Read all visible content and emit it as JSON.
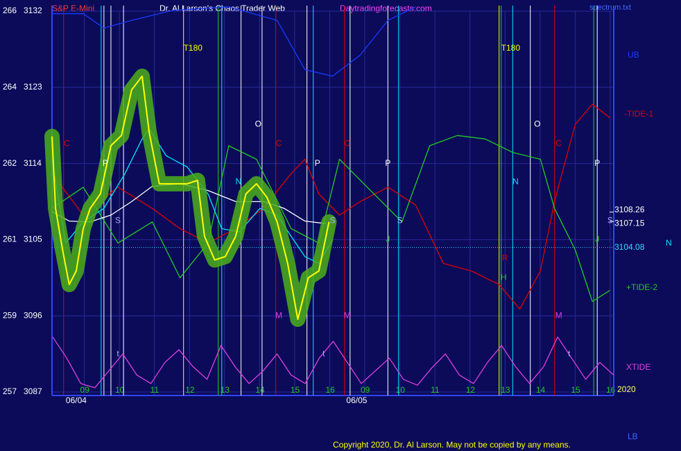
{
  "chart_data": {
    "type": "line",
    "title": "Dr. Al Larson's Chaos Trader Web",
    "symbol": "S&P E-Mini",
    "site": "Daytradingforecasts.com",
    "file": "spectrum.txt",
    "copyright": "Copyright 2020, Dr. Al Larson. May not be copied by any means.",
    "year_label": "2020",
    "lb_label": "LB",
    "n_label": "N",
    "background": "#0b0b5a",
    "grid": true,
    "xlim": [
      0.08,
      16.1
    ],
    "xticks": [
      {
        "value": 1,
        "label": "09"
      },
      {
        "value": 2,
        "label": "10"
      },
      {
        "value": 3,
        "label": "11"
      },
      {
        "value": 4,
        "label": "12"
      },
      {
        "value": 5,
        "label": "13"
      },
      {
        "value": 6,
        "label": "14"
      },
      {
        "value": 7,
        "label": "15"
      },
      {
        "value": 8,
        "label": "16"
      },
      {
        "value": 9,
        "label": "09"
      },
      {
        "value": 10,
        "label": "10"
      },
      {
        "value": 11,
        "label": "11"
      },
      {
        "value": 12,
        "label": "12"
      },
      {
        "value": 13,
        "label": "13"
      },
      {
        "value": 14,
        "label": "14"
      },
      {
        "value": 15,
        "label": "15"
      },
      {
        "value": 16,
        "label": "16"
      }
    ],
    "date_labels": [
      {
        "text": "06/04",
        "x": 0.83
      },
      {
        "text": "06/05",
        "x": 8.83
      }
    ],
    "ylim": [
      3087,
      3132
    ],
    "yticks": [
      3087,
      3096,
      3105,
      3114,
      3123,
      3132
    ],
    "etf_labels": [
      "257",
      "259",
      "261",
      "262",
      "264",
      "266"
    ],
    "levels": [
      {
        "value": 3108.26,
        "color": "#ffffff",
        "line": false
      },
      {
        "value": 3107.15,
        "color": "#ffffff",
        "line": false
      },
      {
        "value": 3104.08,
        "color": "#33ddff",
        "line": true
      }
    ],
    "series": [
      {
        "name": "UB",
        "color": "#1a3aff",
        "x": [
          0.08,
          0.97,
          1.56,
          2.35,
          3.54,
          5.12,
          6.5,
          7.29,
          8.08,
          8.87,
          9.66,
          10.45
        ],
        "values": [
          3131.7,
          3131.7,
          3130.0,
          3130.9,
          3132.1,
          3132.5,
          3130.9,
          3125.1,
          3124.3,
          3126.8,
          3130.9,
          3132.5
        ]
      },
      {
        "name": "-TIDE-1",
        "color": "#e00000",
        "x": [
          0.08,
          0.97,
          1.96,
          2.94,
          3.73,
          4.53,
          5.32,
          6.11,
          6.9,
          7.29,
          7.69,
          8.28,
          8.87,
          9.66,
          10.45,
          11.24,
          12.04,
          12.83,
          13.42,
          14.01,
          14.41,
          15.0,
          15.49,
          15.99
        ],
        "values": [
          3112.8,
          3107.9,
          3111.2,
          3108.7,
          3106.3,
          3104.6,
          3106.3,
          3108.7,
          3112.8,
          3114.5,
          3110.4,
          3107.9,
          3109.5,
          3111.2,
          3109.1,
          3102.2,
          3101.3,
          3099.7,
          3096.8,
          3101.3,
          3109.5,
          3118.6,
          3121.0,
          3119.4
        ]
      },
      {
        "name": "+TIDE-2",
        "color": "#22cc22",
        "x": [
          0.08,
          0.97,
          1.96,
          2.94,
          3.73,
          4.53,
          5.12,
          5.91,
          6.9,
          7.69,
          8.28,
          9.07,
          10.06,
          10.85,
          11.64,
          12.43,
          13.22,
          14.01,
          14.41,
          15.0,
          15.49,
          15.99
        ],
        "values": [
          3108.7,
          3111.2,
          3104.6,
          3107.1,
          3100.5,
          3104.6,
          3116.1,
          3114.5,
          3106.3,
          3104.6,
          3114.5,
          3111.2,
          3107.1,
          3116.1,
          3117.3,
          3116.9,
          3115.3,
          3114.5,
          3108.7,
          3103.8,
          3097.7,
          3099.0
        ]
      },
      {
        "name": "XTIDE",
        "color": "#e040e0",
        "x": [
          0.1,
          0.5,
          0.9,
          1.3,
          1.7,
          2.1,
          2.5,
          2.9,
          3.3,
          3.7,
          4.1,
          4.5,
          4.9,
          5.3,
          5.7,
          6.1,
          6.5,
          6.9,
          7.3,
          7.7,
          8.1,
          8.5,
          8.9,
          9.3,
          9.7,
          10.1,
          10.5,
          10.9,
          11.3,
          11.7,
          12.1,
          12.5,
          12.9,
          13.3,
          13.7,
          14.1,
          14.5,
          14.9,
          15.3,
          15.7,
          16.1
        ],
        "values": [
          3093.5,
          3091,
          3088,
          3087.5,
          3089.5,
          3091.5,
          3089,
          3088,
          3090.5,
          3092,
          3090,
          3088.5,
          3092.5,
          3090,
          3088,
          3089.5,
          3091.5,
          3089,
          3088,
          3091,
          3093,
          3090.5,
          3088,
          3089.5,
          3091,
          3088.5,
          3087.8,
          3089.8,
          3091.5,
          3089,
          3088,
          3090.5,
          3092.5,
          3090,
          3088,
          3090,
          3093.5,
          3091,
          3088.5,
          3090.5,
          3089
        ]
      },
      {
        "color": "#ffffff",
        "x": [
          0.08,
          0.57,
          1.17,
          1.76,
          2.35,
          2.94,
          3.73,
          4.53,
          5.32,
          6.11,
          6.7,
          7.29,
          7.88
        ],
        "values": [
          3108.3,
          3107.2,
          3107.1,
          3107.9,
          3109.5,
          3111.3,
          3111.6,
          3110.8,
          3109.5,
          3109.5,
          3108.7,
          3107.2,
          3106.9
        ]
      },
      {
        "color": "#00e5ff",
        "x": [
          0.08,
          0.47,
          0.97,
          1.56,
          2.16,
          2.65,
          2.85,
          3.34,
          3.93,
          4.53,
          4.92,
          5.42,
          6.01,
          6.5,
          6.9,
          7.29,
          7.69,
          8.08
        ],
        "values": [
          3114.5,
          3104.6,
          3107.1,
          3108.7,
          3112.8,
          3116.9,
          3118.1,
          3114.9,
          3113.6,
          3110.4,
          3106.3,
          3105.9,
          3108.7,
          3107.9,
          3105.4,
          3103.0,
          3102.2,
          3105.0
        ]
      },
      {
        "color": "#ffff00",
        "glow": "#4caf1a",
        "x": [
          0.08,
          0.18,
          0.38,
          0.57,
          0.77,
          0.97,
          1.17,
          1.46,
          1.76,
          2.06,
          2.35,
          2.65,
          2.85,
          3.14,
          3.54,
          3.93,
          4.23,
          4.43,
          4.72,
          5.02,
          5.32,
          5.61,
          5.91,
          6.21,
          6.5,
          6.8,
          7.09,
          7.39,
          7.69,
          7.98
        ],
        "values": [
          3117.2,
          3108.7,
          3103.8,
          3099.7,
          3101.3,
          3106.3,
          3108.7,
          3110.4,
          3116.1,
          3117.3,
          3122.7,
          3124.3,
          3117.7,
          3111.6,
          3111.6,
          3111.6,
          3112.0,
          3105.4,
          3102.6,
          3103.0,
          3105.4,
          3110.4,
          3111.6,
          3110.0,
          3107.1,
          3102.2,
          3095.6,
          3100.5,
          3101.3,
          3107.1
        ]
      }
    ],
    "vlines": [
      {
        "x": 0.41,
        "color": "#e00000"
      },
      {
        "x": 1.48,
        "color": "#00e5ff"
      },
      {
        "x": 1.56,
        "color": "#ffffff"
      },
      {
        "x": 1.76,
        "color": "#ffffff"
      },
      {
        "x": 2.12,
        "color": "#ffffff"
      },
      {
        "x": 3.83,
        "color": "#ffff00"
      },
      {
        "x": 4.82,
        "color": "#22cc22"
      },
      {
        "x": 4.92,
        "color": "#00e5ff"
      },
      {
        "x": 5.47,
        "color": "#ffffff"
      },
      {
        "x": 6.07,
        "color": "#ffffff"
      },
      {
        "x": 6.46,
        "color": "#e00000"
      },
      {
        "x": 7.35,
        "color": "#ffffff"
      },
      {
        "x": 7.53,
        "color": "#00e5ff"
      },
      {
        "x": 8.42,
        "color": "#e00000"
      },
      {
        "x": 8.58,
        "color": "#ffffff"
      },
      {
        "x": 9.66,
        "color": "#ffffff"
      },
      {
        "x": 9.96,
        "color": "#00e5ff"
      },
      {
        "x": 12.83,
        "color": "#ffff00"
      },
      {
        "x": 12.89,
        "color": "#22cc22"
      },
      {
        "x": 13.22,
        "color": "#00e5ff"
      },
      {
        "x": 13.72,
        "color": "#ffffff"
      },
      {
        "x": 14.41,
        "color": "#e00000"
      },
      {
        "x": 15.53,
        "color": "#22cc22"
      },
      {
        "x": 15.63,
        "color": "#ffffff"
      }
    ],
    "annotations": [
      {
        "text": "C",
        "x": 0.5,
        "y": 3116.3,
        "color": "#e00000"
      },
      {
        "text": "P",
        "x": 1.6,
        "y": 3114.0,
        "color": "#ffffff"
      },
      {
        "text": "S",
        "x": 1.96,
        "y": 3107.2,
        "color": "#aaaaff"
      },
      {
        "text": "T180",
        "x": 4.1,
        "y": 3127.6,
        "color": "#ffff00"
      },
      {
        "text": "N",
        "x": 5.4,
        "y": 3111.8,
        "color": "#00e5ff"
      },
      {
        "text": "O",
        "x": 5.96,
        "y": 3118.6,
        "color": "#ffffff"
      },
      {
        "text": "C",
        "x": 6.55,
        "y": 3116.3,
        "color": "#e00000"
      },
      {
        "text": "M",
        "x": 6.55,
        "y": 3096.0,
        "color": "#e040e0"
      },
      {
        "text": "P",
        "x": 7.65,
        "y": 3114.0,
        "color": "#ffffff"
      },
      {
        "text": "S",
        "x": 8.08,
        "y": 3107.2,
        "color": "#aaaaff"
      },
      {
        "text": "C",
        "x": 8.5,
        "y": 3116.3,
        "color": "#e00000"
      },
      {
        "text": "M",
        "x": 8.5,
        "y": 3096.0,
        "color": "#e040e0"
      },
      {
        "text": "P",
        "x": 9.66,
        "y": 3114.0,
        "color": "#ffffff"
      },
      {
        "text": "J",
        "x": 9.66,
        "y": 3105.0,
        "color": "#22cc22"
      },
      {
        "text": "S",
        "x": 10.0,
        "y": 3107.2,
        "color": "#aaaaff"
      },
      {
        "text": "t",
        "x": 1.96,
        "y": 3091.5,
        "color": "#aaaaff"
      },
      {
        "text": "t",
        "x": 7.83,
        "y": 3091.5,
        "color": "#aaaaff"
      },
      {
        "text": "T180",
        "x": 13.16,
        "y": 3127.6,
        "color": "#ffff00"
      },
      {
        "text": "R",
        "x": 13.0,
        "y": 3102.8,
        "color": "#e00000"
      },
      {
        "text": "H",
        "x": 12.96,
        "y": 3100.5,
        "color": "#22cc22"
      },
      {
        "text": "N",
        "x": 13.3,
        "y": 3111.8,
        "color": "#00e5ff"
      },
      {
        "text": "O",
        "x": 13.92,
        "y": 3118.6,
        "color": "#ffffff"
      },
      {
        "text": "C",
        "x": 14.53,
        "y": 3116.3,
        "color": "#e00000"
      },
      {
        "text": "M",
        "x": 14.53,
        "y": 3096.0,
        "color": "#e040e0"
      },
      {
        "text": "t",
        "x": 14.83,
        "y": 3091.5,
        "color": "#aaaaff"
      },
      {
        "text": "P",
        "x": 15.63,
        "y": 3114.0,
        "color": "#ffffff"
      },
      {
        "text": "J",
        "x": 15.63,
        "y": 3105.0,
        "color": "#22cc22"
      },
      {
        "text": "S",
        "x": 16.0,
        "y": 3107.2,
        "color": "#aaaaff"
      }
    ]
  }
}
